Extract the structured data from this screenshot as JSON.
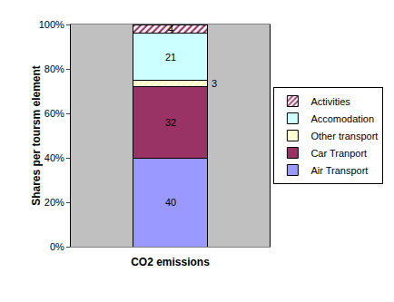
{
  "chart_data": {
    "type": "bar",
    "stacked": true,
    "data_labels": true,
    "grid": false,
    "legend": "right",
    "xlabel": "CO2 emissions",
    "ylabel": "Shares per toursm element",
    "categories": [
      "CO2 emissions"
    ],
    "series": [
      {
        "name": "Air Transport",
        "color": "#9999ff",
        "values": [
          40
        ]
      },
      {
        "name": "Car Tranport",
        "color": "#993366",
        "values": [
          32
        ]
      },
      {
        "name": "Other transport",
        "color": "#ffff99",
        "marker": "hatch",
        "values": [
          3
        ]
      },
      {
        "name": "Accomodation",
        "color": "#ccffff",
        "values": [
          21
        ]
      },
      {
        "name": "Activities",
        "color": "#993366",
        "marker": "hatch",
        "values": [
          4
        ]
      }
    ],
    "ylim": [
      0,
      100
    ],
    "yticks": [
      {
        "value": 0,
        "label": "0%"
      },
      {
        "value": 20,
        "label": "20%"
      },
      {
        "value": 40,
        "label": "40%"
      },
      {
        "value": 60,
        "label": "60%"
      },
      {
        "value": 80,
        "label": "80%"
      },
      {
        "value": 100,
        "label": "100%"
      }
    ]
  }
}
